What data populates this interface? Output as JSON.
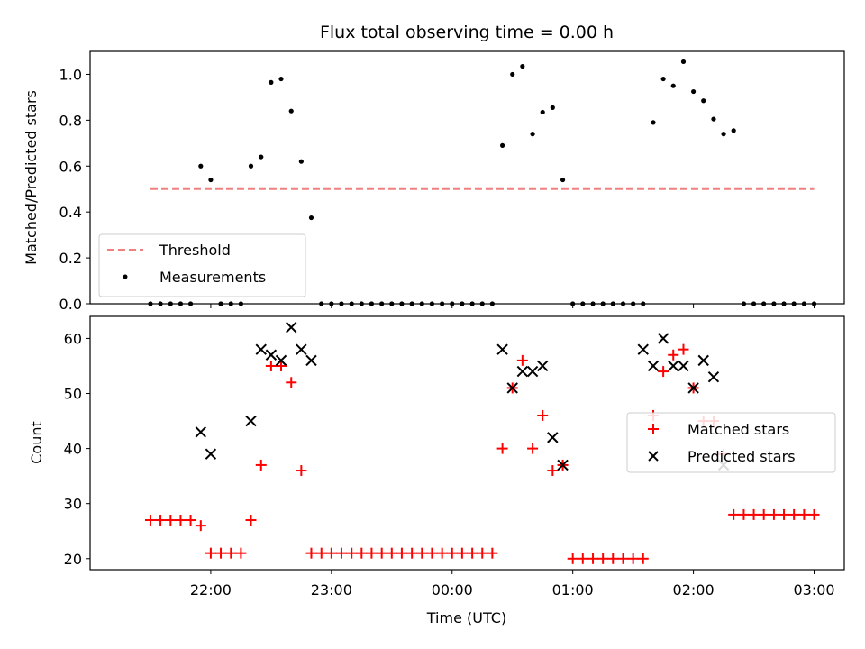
{
  "chart_data": [
    {
      "type": "scatter",
      "title": "Flux total observing time = 0.00 h",
      "xlabel": "",
      "ylabel": "Matched/Predicted stars",
      "ylim": [
        0,
        1.1
      ],
      "yticks": [
        0.0,
        0.2,
        0.4,
        0.6,
        0.8,
        1.0
      ],
      "ytick_labels": [
        "0.0",
        "0.2",
        "0.4",
        "0.6",
        "0.8",
        "1.0"
      ],
      "legend_placement": "lower-left",
      "threshold": {
        "name": "Threshold",
        "value": 0.5,
        "x_start": 21.5,
        "x_end": 27.0,
        "color": "#f08080",
        "style": "dashed"
      },
      "series": [
        {
          "name": "Measurements",
          "color": "#000000",
          "x": [
            21.5,
            21.583,
            21.667,
            21.75,
            21.833,
            21.917,
            22.0,
            22.083,
            22.167,
            22.25,
            22.333,
            22.417,
            22.5,
            22.583,
            22.667,
            22.75,
            22.833,
            22.917,
            23.0,
            23.083,
            23.167,
            23.25,
            23.333,
            23.417,
            23.5,
            23.583,
            23.667,
            23.75,
            23.833,
            23.917,
            24.0,
            24.083,
            24.167,
            24.25,
            24.333,
            24.417,
            24.5,
            24.583,
            24.667,
            24.75,
            24.833,
            24.917,
            25.0,
            25.083,
            25.167,
            25.25,
            25.333,
            25.417,
            25.5,
            25.583,
            25.667,
            25.75,
            25.833,
            25.917,
            26.0,
            26.083,
            26.167,
            26.25,
            26.333,
            26.417,
            26.5,
            26.583,
            26.667,
            26.75,
            26.833,
            26.917,
            27.0
          ],
          "y": [
            0.0,
            0.0,
            0.0,
            0.0,
            0.0,
            0.6,
            0.54,
            0.0,
            0.0,
            0.0,
            0.6,
            0.64,
            0.965,
            0.98,
            0.84,
            0.62,
            0.375,
            0.0,
            0.0,
            0.0,
            0.0,
            0.0,
            0.0,
            0.0,
            0.0,
            0.0,
            0.0,
            0.0,
            0.0,
            0.0,
            0.0,
            0.0,
            0.0,
            0.0,
            0.0,
            0.69,
            1.0,
            1.035,
            0.74,
            0.835,
            0.855,
            0.54,
            0.0,
            0.0,
            0.0,
            0.0,
            0.0,
            0.0,
            0.0,
            0.0,
            0.79,
            0.98,
            0.95,
            1.055,
            0.925,
            0.885,
            0.805,
            0.74,
            0.755,
            0.0,
            0.0,
            0.0,
            0.0,
            0.0,
            0.0,
            0.0,
            0.0
          ]
        }
      ]
    },
    {
      "type": "scatter",
      "title": "",
      "xlabel": "Time (UTC)",
      "ylabel": "Count",
      "ylim": [
        18,
        64
      ],
      "yticks": [
        20,
        30,
        40,
        50,
        60
      ],
      "ytick_labels": [
        "20",
        "30",
        "40",
        "50",
        "60"
      ],
      "xlim": [
        21.0,
        27.25
      ],
      "xticks": [
        22,
        23,
        24,
        25,
        26,
        27
      ],
      "xtick_labels": [
        "22:00",
        "23:00",
        "00:00",
        "01:00",
        "02:00",
        "03:00"
      ],
      "legend_placement": "center-right",
      "series": [
        {
          "name": "Matched stars",
          "marker": "plus",
          "color": "#ff0000",
          "x": [
            21.5,
            21.583,
            21.667,
            21.75,
            21.833,
            21.917,
            22.0,
            22.083,
            22.167,
            22.25,
            22.333,
            22.417,
            22.5,
            22.583,
            22.667,
            22.75,
            22.833,
            22.917,
            23.0,
            23.083,
            23.167,
            23.25,
            23.333,
            23.417,
            23.5,
            23.583,
            23.667,
            23.75,
            23.833,
            23.917,
            24.0,
            24.083,
            24.167,
            24.25,
            24.333,
            24.417,
            24.5,
            24.583,
            24.667,
            24.75,
            24.833,
            24.917,
            25.0,
            25.083,
            25.167,
            25.25,
            25.333,
            25.417,
            25.5,
            25.583,
            25.667,
            25.75,
            25.833,
            25.917,
            26.0,
            26.083,
            26.167,
            26.25,
            26.333,
            26.417,
            26.5,
            26.583,
            26.667,
            26.75,
            26.833,
            26.917,
            27.0
          ],
          "y": [
            27,
            27,
            27,
            27,
            27,
            26,
            21,
            21,
            21,
            21,
            27,
            37,
            55,
            55,
            52,
            36,
            21,
            21,
            21,
            21,
            21,
            21,
            21,
            21,
            21,
            21,
            21,
            21,
            21,
            21,
            21,
            21,
            21,
            21,
            21,
            40,
            51,
            56,
            40,
            46,
            36,
            37,
            20,
            20,
            20,
            20,
            20,
            20,
            20,
            20,
            46,
            54,
            57,
            58,
            51,
            45,
            45,
            39,
            28,
            28,
            28,
            28,
            28,
            28,
            28,
            28,
            28
          ]
        },
        {
          "name": "Predicted stars",
          "marker": "x",
          "color": "#000000",
          "x": [
            21.917,
            22.0,
            22.333,
            22.417,
            22.5,
            22.583,
            22.667,
            22.75,
            22.833,
            24.417,
            24.5,
            24.583,
            24.667,
            24.75,
            24.833,
            24.917,
            25.583,
            25.667,
            25.75,
            25.833,
            25.917,
            26.0,
            26.083,
            26.167,
            26.25
          ],
          "y": [
            43,
            39,
            45,
            58,
            57,
            56,
            62,
            58,
            56,
            58,
            51,
            54,
            54,
            55,
            42,
            37,
            58,
            55,
            60,
            55,
            55,
            51,
            56,
            53,
            37
          ]
        }
      ]
    }
  ]
}
